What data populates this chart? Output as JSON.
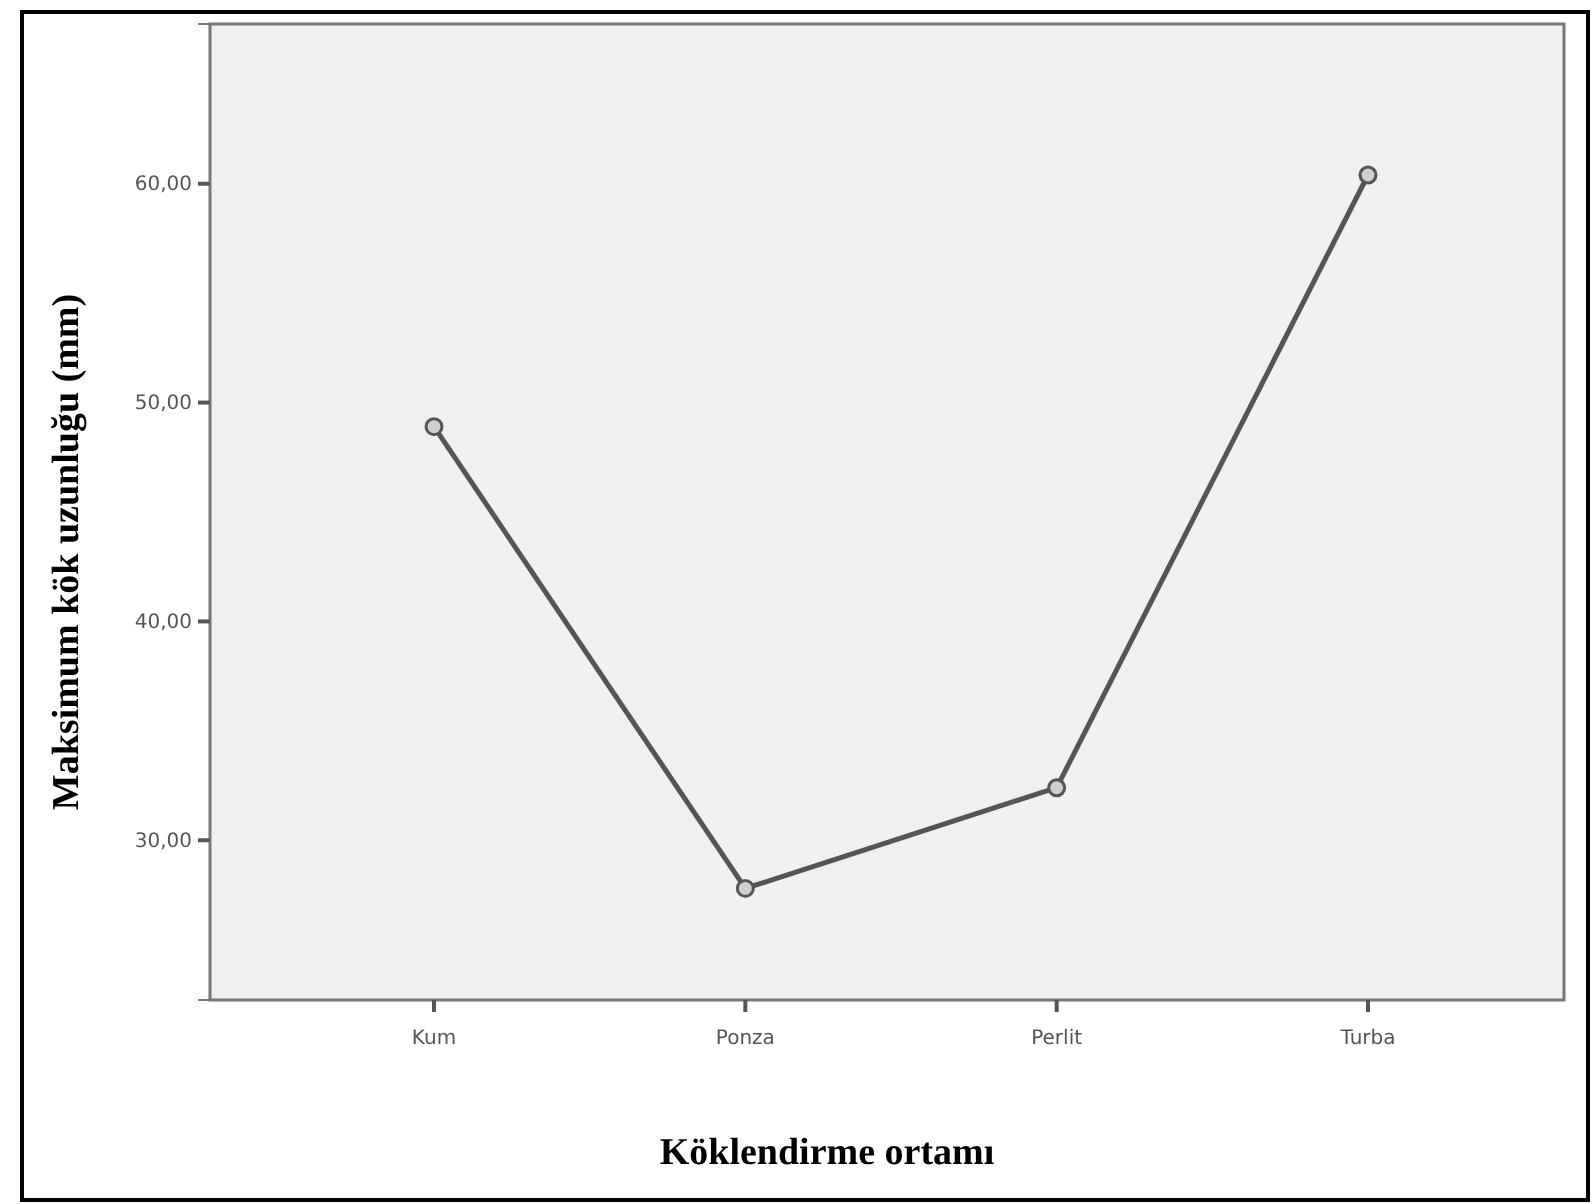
{
  "chart_data": {
    "type": "line",
    "xlabel": "Köklendirme ortamı",
    "ylabel": "Maksimum kök uzunluğu (mm)",
    "categories": [
      "Kum",
      "Ponza",
      "Perlit",
      "Turba"
    ],
    "series": [
      {
        "color": "#555555",
        "values": [
          48.9,
          27.8,
          32.4,
          60.4
        ]
      }
    ],
    "ylim": [
      22.7,
      67.3
    ],
    "yticks": [
      {
        "value": 30,
        "label": "30,00"
      },
      {
        "value": 40,
        "label": "40,00"
      },
      {
        "value": 50,
        "label": "50,00"
      },
      {
        "value": 60,
        "label": "60,00"
      }
    ],
    "marker": "circle",
    "line_style": "solid"
  }
}
